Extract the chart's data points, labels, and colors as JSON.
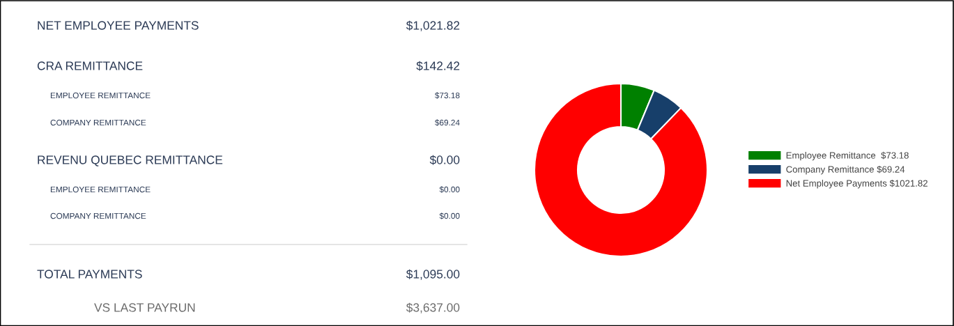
{
  "chart_data": [
    {
      "type": "other",
      "annotations": [
        "NET EMPLOYEE PAYMENTS",
        "$1,021.82",
        "CRA REMITTANCE",
        "$142.42",
        "EMPLOYEE REMITTANCE",
        "$73.18",
        "COMPANY REMITTANCE",
        "$69.24",
        "REVENU QUEBEC REMITTANCE",
        "$0.00",
        "EMPLOYEE REMITTANCE",
        "$0.00",
        "COMPANY REMITTANCE",
        "$0.00",
        "TOTAL PAYMENTS",
        "$1,095.00",
        "VS LAST PAYRUN",
        "$3,637.00"
      ]
    },
    {
      "type": "donut",
      "categories": [
        "Employee Remittance  $73.18",
        "Company Remittance $69.24",
        "Net Employee Payments $1021.82"
      ],
      "values": [
        73.18,
        69.24,
        1021.82
      ],
      "colors": [
        "#008000",
        "#173f6a",
        "#ff0000"
      ],
      "legend": "right"
    }
  ]
}
